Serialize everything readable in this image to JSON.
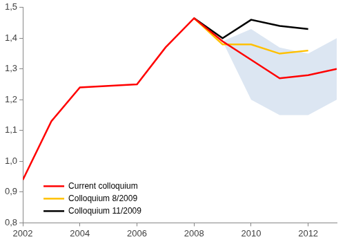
{
  "chart_data": {
    "type": "line",
    "x": [
      2002,
      2003,
      2004,
      2005,
      2006,
      2007,
      2008,
      2009,
      2010,
      2011,
      2012,
      2013
    ],
    "series": [
      {
        "name": "Current colloquium",
        "color": "#ff0000",
        "values": [
          0.94,
          1.13,
          1.24,
          1.245,
          1.25,
          1.37,
          1.465,
          1.39,
          1.33,
          1.27,
          1.28,
          1.3
        ]
      },
      {
        "name": "Colloquium 8/2009",
        "color": "#ffc000",
        "values": [
          null,
          null,
          null,
          null,
          null,
          null,
          1.465,
          1.38,
          1.38,
          1.35,
          1.36,
          null
        ]
      },
      {
        "name": "Colloquium 11/2009",
        "color": "#000000",
        "values": [
          null,
          null,
          null,
          null,
          null,
          null,
          1.465,
          1.4,
          1.46,
          1.44,
          1.43,
          null
        ]
      }
    ],
    "band": {
      "color": "#dce6f2",
      "lower": [
        null,
        null,
        null,
        null,
        null,
        null,
        null,
        1.39,
        1.2,
        1.15,
        1.15,
        1.2
      ],
      "upper": [
        null,
        null,
        null,
        null,
        null,
        null,
        null,
        1.39,
        1.43,
        1.37,
        1.35,
        1.4
      ]
    },
    "xlim": [
      2002,
      2013
    ],
    "xticks": [
      2002,
      2004,
      2006,
      2008,
      2010,
      2012
    ],
    "ylim": [
      0.8,
      1.5
    ],
    "yticks": [
      {
        "value": 0.8,
        "label": "0,8"
      },
      {
        "value": 0.9,
        "label": "0,9"
      },
      {
        "value": 1.0,
        "label": "1,0"
      },
      {
        "value": 1.1,
        "label": "1,1"
      },
      {
        "value": 1.2,
        "label": "1,2"
      },
      {
        "value": 1.3,
        "label": "1,3"
      },
      {
        "value": 1.4,
        "label": "1,4"
      },
      {
        "value": 1.5,
        "label": "1,5"
      }
    ],
    "grid": false,
    "legend": "lower left"
  }
}
